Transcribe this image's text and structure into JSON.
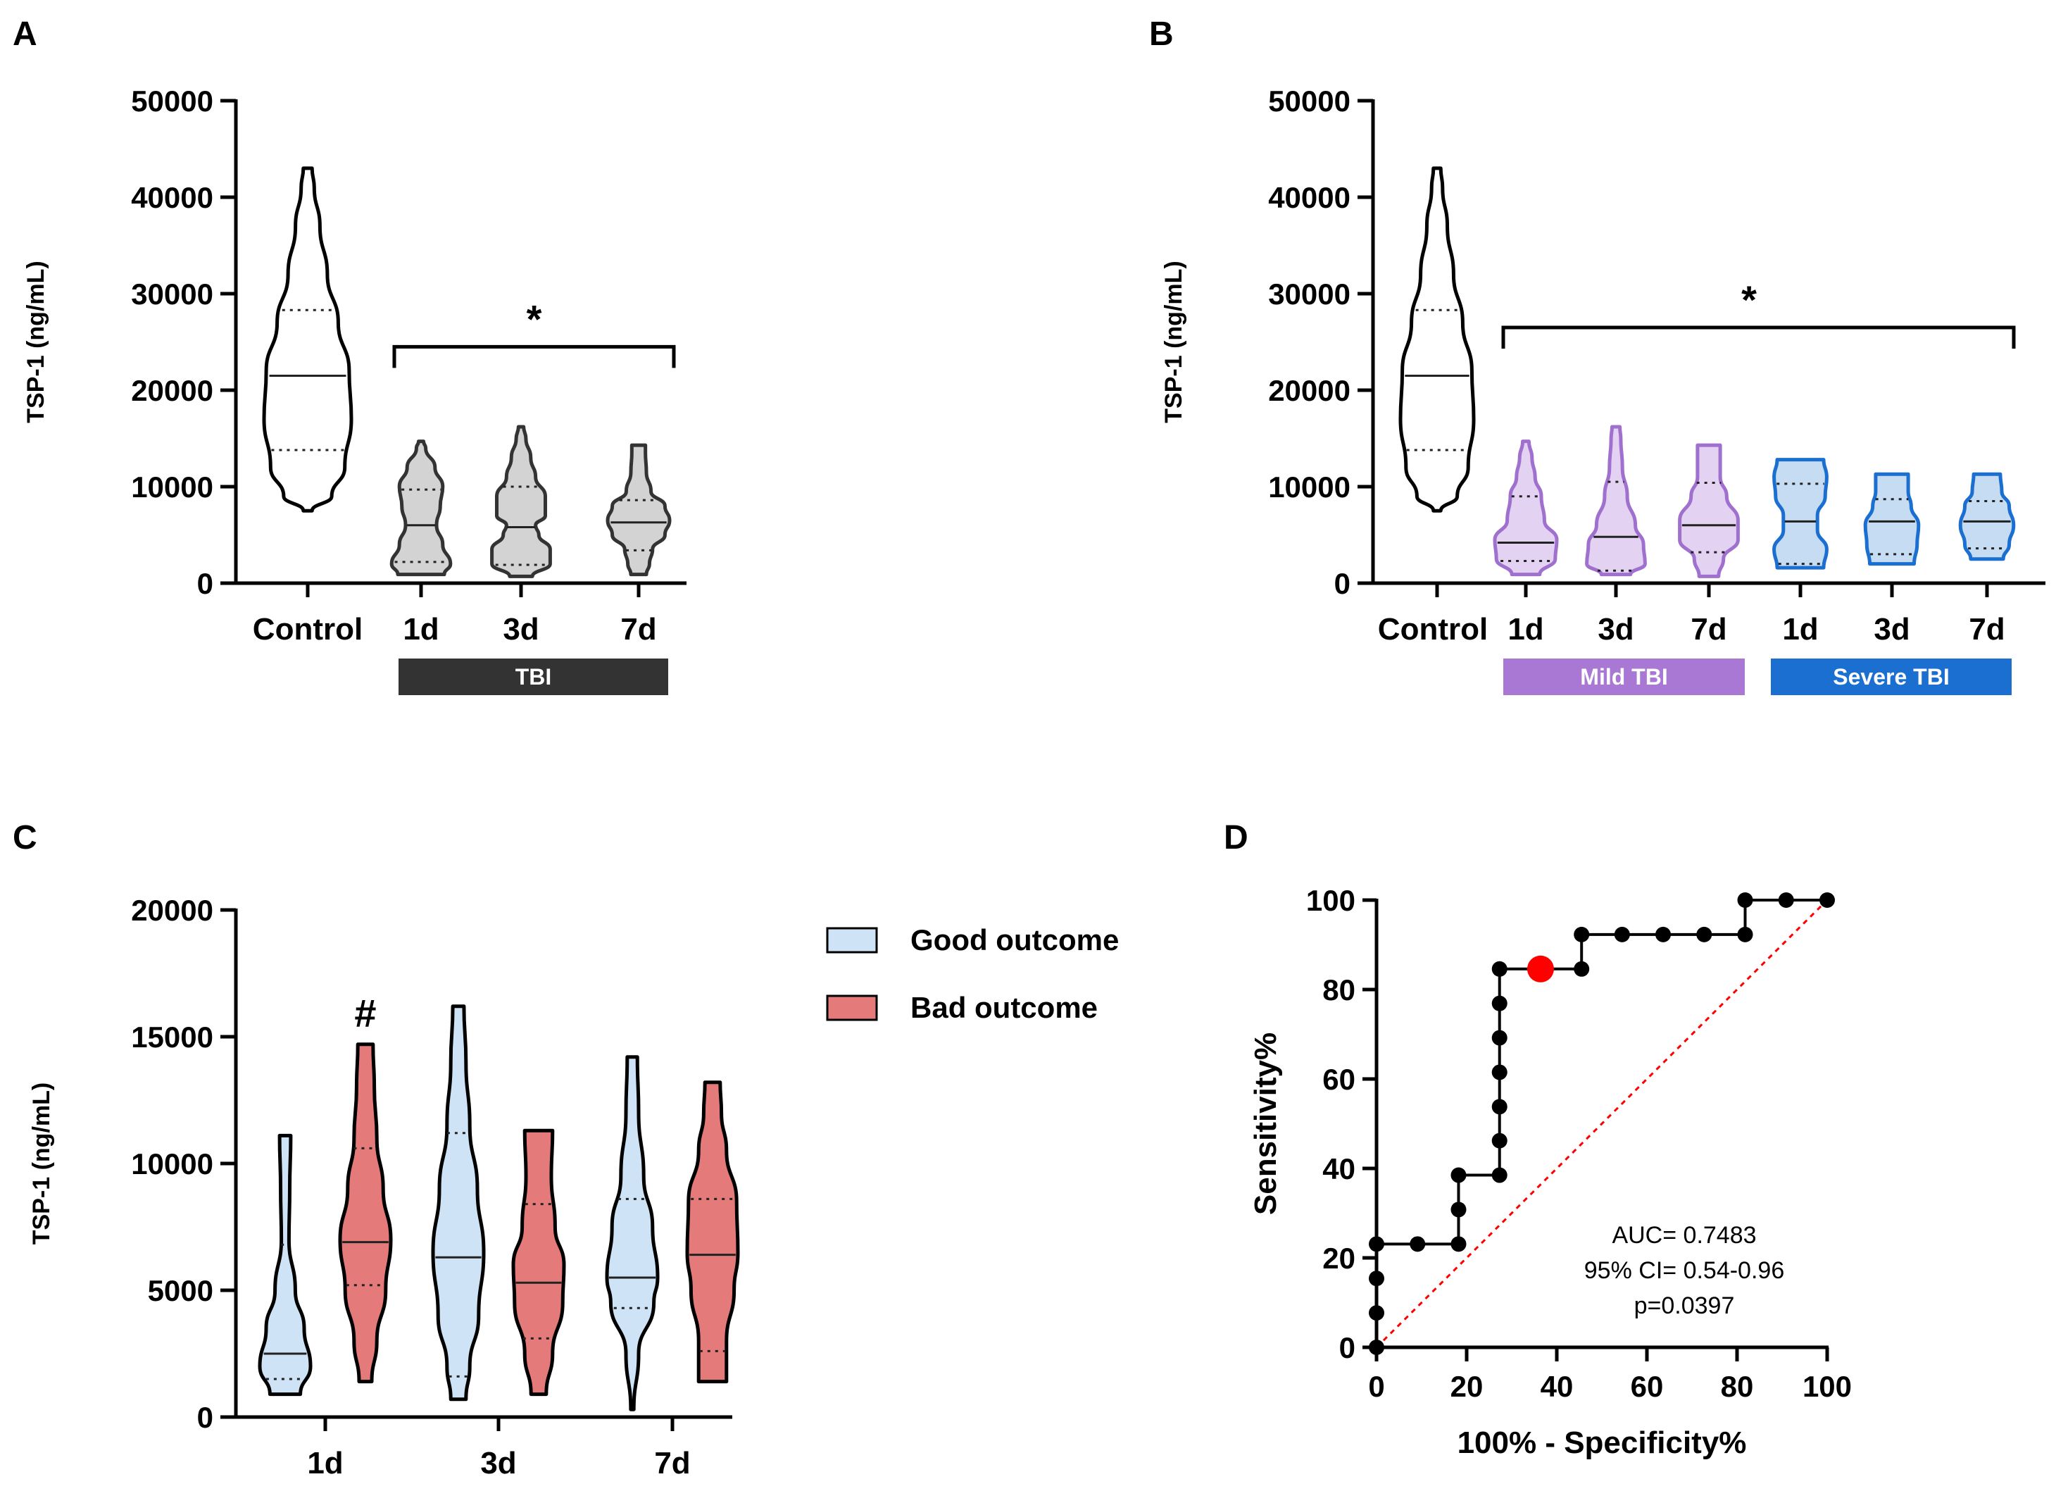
{
  "colors": {
    "control": "#ffffff",
    "tbi": "#d3d3d3",
    "tbi_stroke": "#333333",
    "mild": "#e3d2f2",
    "mild_stroke": "#a070cf",
    "mild_bar": "#a878d4",
    "severe": "#c6dcf2",
    "severe_stroke": "#1a6fd0",
    "severe_bar": "#1a6fd0",
    "good": "#cfe3f6",
    "bad": "#e47a7a",
    "black_bar": "#333333",
    "cutoff": "#ff0000",
    "diagonal": "#ff0000"
  },
  "chart_data": [
    {
      "panel": "A",
      "type": "violin",
      "ylabel": "TSP-1 (ng/mL)",
      "ylim": [
        0,
        50000
      ],
      "yticks": [
        "0",
        "10000",
        "20000",
        "30000",
        "40000",
        "50000"
      ],
      "categories": [
        "Control",
        "1d",
        "3d",
        "7d"
      ],
      "group_bars": [
        {
          "label": "TBI",
          "from": 1,
          "to": 3,
          "color": "#333333"
        }
      ],
      "significance": {
        "label": "*",
        "from": 1,
        "to": 3,
        "y": 24500
      },
      "violins": [
        {
          "min": 7500,
          "q1": 13800,
          "median": 21500,
          "q3": 28300,
          "max": 43000,
          "profile": [
            [
              7500,
              0.1
            ],
            [
              9000,
              0.55
            ],
            [
              12000,
              0.85
            ],
            [
              17000,
              1.0
            ],
            [
              22000,
              0.95
            ],
            [
              27000,
              0.7
            ],
            [
              32000,
              0.45
            ],
            [
              37000,
              0.28
            ],
            [
              41000,
              0.15
            ],
            [
              43000,
              0.1
            ]
          ]
        },
        {
          "min": 900,
          "q1": 2200,
          "median": 6000,
          "q3": 9700,
          "max": 14700,
          "profile": [
            [
              900,
              0.75
            ],
            [
              2000,
              0.95
            ],
            [
              4000,
              0.7
            ],
            [
              6000,
              0.5
            ],
            [
              8000,
              0.62
            ],
            [
              10000,
              0.7
            ],
            [
              12000,
              0.45
            ],
            [
              14000,
              0.15
            ],
            [
              14700,
              0.08
            ]
          ]
        },
        {
          "min": 700,
          "q1": 1900,
          "median": 5800,
          "q3": 10000,
          "max": 16200,
          "profile": [
            [
              700,
              0.35
            ],
            [
              2000,
              0.9
            ],
            [
              3500,
              0.9
            ],
            [
              5000,
              0.55
            ],
            [
              6000,
              0.45
            ],
            [
              7000,
              0.75
            ],
            [
              9000,
              0.75
            ],
            [
              11000,
              0.45
            ],
            [
              13000,
              0.3
            ],
            [
              15000,
              0.15
            ],
            [
              16200,
              0.08
            ]
          ]
        },
        {
          "min": 900,
          "q1": 3400,
          "median": 6300,
          "q3": 8600,
          "max": 14300,
          "profile": [
            [
              900,
              0.25
            ],
            [
              2000,
              0.35
            ],
            [
              3500,
              0.45
            ],
            [
              5000,
              0.85
            ],
            [
              6500,
              1.0
            ],
            [
              8000,
              0.85
            ],
            [
              9500,
              0.4
            ],
            [
              11500,
              0.25
            ],
            [
              13500,
              0.22
            ],
            [
              14300,
              0.22
            ]
          ]
        }
      ]
    },
    {
      "panel": "B",
      "type": "violin",
      "ylabel": "TSP-1 (ng/mL)",
      "ylim": [
        0,
        50000
      ],
      "yticks": [
        "0",
        "10000",
        "20000",
        "30000",
        "40000",
        "50000"
      ],
      "categories": [
        "Control",
        "1d",
        "3d",
        "7d",
        "1d",
        "3d",
        "7d"
      ],
      "group_bars": [
        {
          "label": "Mild TBI",
          "from": 1,
          "to": 3,
          "color": "#a878d4"
        },
        {
          "label": "Severe TBI",
          "from": 4,
          "to": 6,
          "color": "#1a6fd0"
        }
      ],
      "significance": {
        "label": "*",
        "from": 0.2,
        "to": 6,
        "y": 26500
      },
      "violins": [
        {
          "min": 7500,
          "q1": 13800,
          "median": 21500,
          "q3": 28300,
          "max": 43000,
          "profile": [
            [
              7500,
              0.1
            ],
            [
              9000,
              0.55
            ],
            [
              12000,
              0.85
            ],
            [
              17000,
              1.0
            ],
            [
              22000,
              0.95
            ],
            [
              27000,
              0.7
            ],
            [
              32000,
              0.45
            ],
            [
              37000,
              0.28
            ],
            [
              41000,
              0.15
            ],
            [
              43000,
              0.1
            ]
          ]
        },
        {
          "min": 900,
          "q1": 2300,
          "median": 4200,
          "q3": 9000,
          "max": 14700,
          "profile": [
            [
              900,
              0.45
            ],
            [
              2500,
              0.95
            ],
            [
              4500,
              1.0
            ],
            [
              6500,
              0.6
            ],
            [
              9000,
              0.5
            ],
            [
              11000,
              0.3
            ],
            [
              13000,
              0.2
            ],
            [
              14700,
              0.1
            ]
          ]
        },
        {
          "min": 900,
          "q1": 1300,
          "median": 4800,
          "q3": 10500,
          "max": 16200,
          "profile": [
            [
              900,
              0.45
            ],
            [
              2000,
              0.9
            ],
            [
              4000,
              0.85
            ],
            [
              6000,
              0.6
            ],
            [
              9000,
              0.35
            ],
            [
              12000,
              0.2
            ],
            [
              15000,
              0.15
            ],
            [
              16200,
              0.12
            ]
          ]
        },
        {
          "min": 700,
          "q1": 3200,
          "median": 6000,
          "q3": 10400,
          "max": 14300,
          "profile": [
            [
              700,
              0.3
            ],
            [
              2500,
              0.45
            ],
            [
              4500,
              0.9
            ],
            [
              6500,
              0.9
            ],
            [
              9000,
              0.55
            ],
            [
              11000,
              0.35
            ],
            [
              13000,
              0.35
            ],
            [
              14300,
              0.35
            ]
          ]
        },
        {
          "min": 1600,
          "q1": 2000,
          "median": 6400,
          "q3": 10300,
          "max": 12800,
          "profile": [
            [
              1600,
              0.75
            ],
            [
              3500,
              0.85
            ],
            [
              5500,
              0.55
            ],
            [
              7000,
              0.55
            ],
            [
              9000,
              0.8
            ],
            [
              11000,
              0.85
            ],
            [
              12800,
              0.75
            ]
          ]
        },
        {
          "min": 2000,
          "q1": 3000,
          "median": 6400,
          "q3": 8700,
          "max": 11300,
          "profile": [
            [
              2000,
              0.75
            ],
            [
              4000,
              0.85
            ],
            [
              6000,
              0.9
            ],
            [
              8000,
              0.65
            ],
            [
              9500,
              0.55
            ],
            [
              11300,
              0.55
            ]
          ]
        },
        {
          "min": 2500,
          "q1": 3600,
          "median": 6400,
          "q3": 8500,
          "max": 11300,
          "profile": [
            [
              2500,
              0.55
            ],
            [
              4000,
              0.75
            ],
            [
              6000,
              0.9
            ],
            [
              8000,
              0.75
            ],
            [
              9500,
              0.5
            ],
            [
              11300,
              0.45
            ]
          ]
        }
      ]
    },
    {
      "panel": "C",
      "type": "violin",
      "ylabel": "TSP-1 (ng/mL)",
      "ylim": [
        0,
        20000
      ],
      "yticks": [
        "0",
        "5000",
        "10000",
        "15000",
        "20000"
      ],
      "categories": [
        "1d",
        "3d",
        "7d"
      ],
      "legend": [
        {
          "label": "Good outcome",
          "color": "#cfe3f6"
        },
        {
          "label": "Bad outcome",
          "color": "#e47a7a"
        }
      ],
      "annotation": {
        "label": "#",
        "category": 0,
        "series": "Bad outcome"
      },
      "series": [
        {
          "name": "Good outcome",
          "violins": [
            {
              "min": 900,
              "q1": 1500,
              "median": 2500,
              "q3": 6800,
              "max": 11100,
              "profile": [
                [
                  900,
                  0.6
                ],
                [
                  2000,
                  1.0
                ],
                [
                  3500,
                  0.75
                ],
                [
                  5000,
                  0.4
                ],
                [
                  7000,
                  0.15
                ],
                [
                  9000,
                  0.18
                ],
                [
                  11100,
                  0.22
                ]
              ]
            },
            {
              "min": 700,
              "q1": 1600,
              "median": 6300,
              "q3": 11200,
              "max": 16200,
              "profile": [
                [
                  700,
                  0.3
                ],
                [
                  2000,
                  0.45
                ],
                [
                  4000,
                  0.8
                ],
                [
                  6500,
                  1.0
                ],
                [
                  9000,
                  0.75
                ],
                [
                  11500,
                  0.45
                ],
                [
                  14000,
                  0.3
                ],
                [
                  16200,
                  0.22
                ]
              ]
            },
            {
              "min": 300,
              "q1": 4300,
              "median": 5500,
              "q3": 8600,
              "max": 14200,
              "profile": [
                [
                  300,
                  0.06
                ],
                [
                  2500,
                  0.25
                ],
                [
                  4500,
                  0.85
                ],
                [
                  5500,
                  1.0
                ],
                [
                  7500,
                  0.8
                ],
                [
                  9500,
                  0.45
                ],
                [
                  12000,
                  0.25
                ],
                [
                  14200,
                  0.2
                ]
              ]
            }
          ]
        },
        {
          "name": "Bad outcome",
          "violins": [
            {
              "min": 1400,
              "q1": 5200,
              "median": 6900,
              "q3": 10600,
              "max": 14700,
              "profile": [
                [
                  1400,
                  0.25
                ],
                [
                  3000,
                  0.45
                ],
                [
                  5000,
                  0.8
                ],
                [
                  7000,
                  1.0
                ],
                [
                  9000,
                  0.7
                ],
                [
                  11000,
                  0.45
                ],
                [
                  13000,
                  0.35
                ],
                [
                  14700,
                  0.3
                ]
              ]
            },
            {
              "min": 900,
              "q1": 3100,
              "median": 5300,
              "q3": 8400,
              "max": 11300,
              "profile": [
                [
                  900,
                  0.3
                ],
                [
                  2500,
                  0.55
                ],
                [
                  4500,
                  0.95
                ],
                [
                  6000,
                  1.0
                ],
                [
                  7500,
                  0.65
                ],
                [
                  9500,
                  0.5
                ],
                [
                  11300,
                  0.55
                ]
              ]
            },
            {
              "min": 1400,
              "q1": 2600,
              "median": 6400,
              "q3": 8600,
              "max": 13200,
              "profile": [
                [
                  1400,
                  0.55
                ],
                [
                  3000,
                  0.55
                ],
                [
                  5000,
                  0.85
                ],
                [
                  6500,
                  1.0
                ],
                [
                  8500,
                  0.95
                ],
                [
                  10500,
                  0.55
                ],
                [
                  12000,
                  0.35
                ],
                [
                  13200,
                  0.3
                ]
              ]
            }
          ]
        }
      ]
    },
    {
      "panel": "D",
      "type": "line",
      "xlabel": "100% - Specificity%",
      "ylabel": "Sensitivity%",
      "xlim": [
        0,
        100
      ],
      "ylim": [
        0,
        100
      ],
      "xticks": [
        "0",
        "20",
        "40",
        "60",
        "80",
        "100"
      ],
      "yticks": [
        "0",
        "20",
        "40",
        "60",
        "80",
        "100"
      ],
      "roc_points": [
        [
          0,
          0
        ],
        [
          0,
          7.7
        ],
        [
          0,
          15.4
        ],
        [
          0,
          23.1
        ],
        [
          9.1,
          23.1
        ],
        [
          18.2,
          23.1
        ],
        [
          18.2,
          30.8
        ],
        [
          18.2,
          38.5
        ],
        [
          27.3,
          38.5
        ],
        [
          27.3,
          46.2
        ],
        [
          27.3,
          53.8
        ],
        [
          27.3,
          61.5
        ],
        [
          27.3,
          69.2
        ],
        [
          27.3,
          76.9
        ],
        [
          27.3,
          84.6
        ],
        [
          36.4,
          84.6
        ],
        [
          45.5,
          84.6
        ],
        [
          45.5,
          92.3
        ],
        [
          54.5,
          92.3
        ],
        [
          63.6,
          92.3
        ],
        [
          72.7,
          92.3
        ],
        [
          81.8,
          92.3
        ],
        [
          81.8,
          100
        ],
        [
          90.9,
          100
        ],
        [
          100,
          100
        ]
      ],
      "cutoff_point": [
        36.4,
        84.6
      ],
      "reference_line": [
        [
          0,
          0
        ],
        [
          100,
          100
        ]
      ],
      "stats": [
        "AUC= 0.7483",
        "95% CI= 0.54-0.96",
        "p=0.0397"
      ]
    }
  ]
}
